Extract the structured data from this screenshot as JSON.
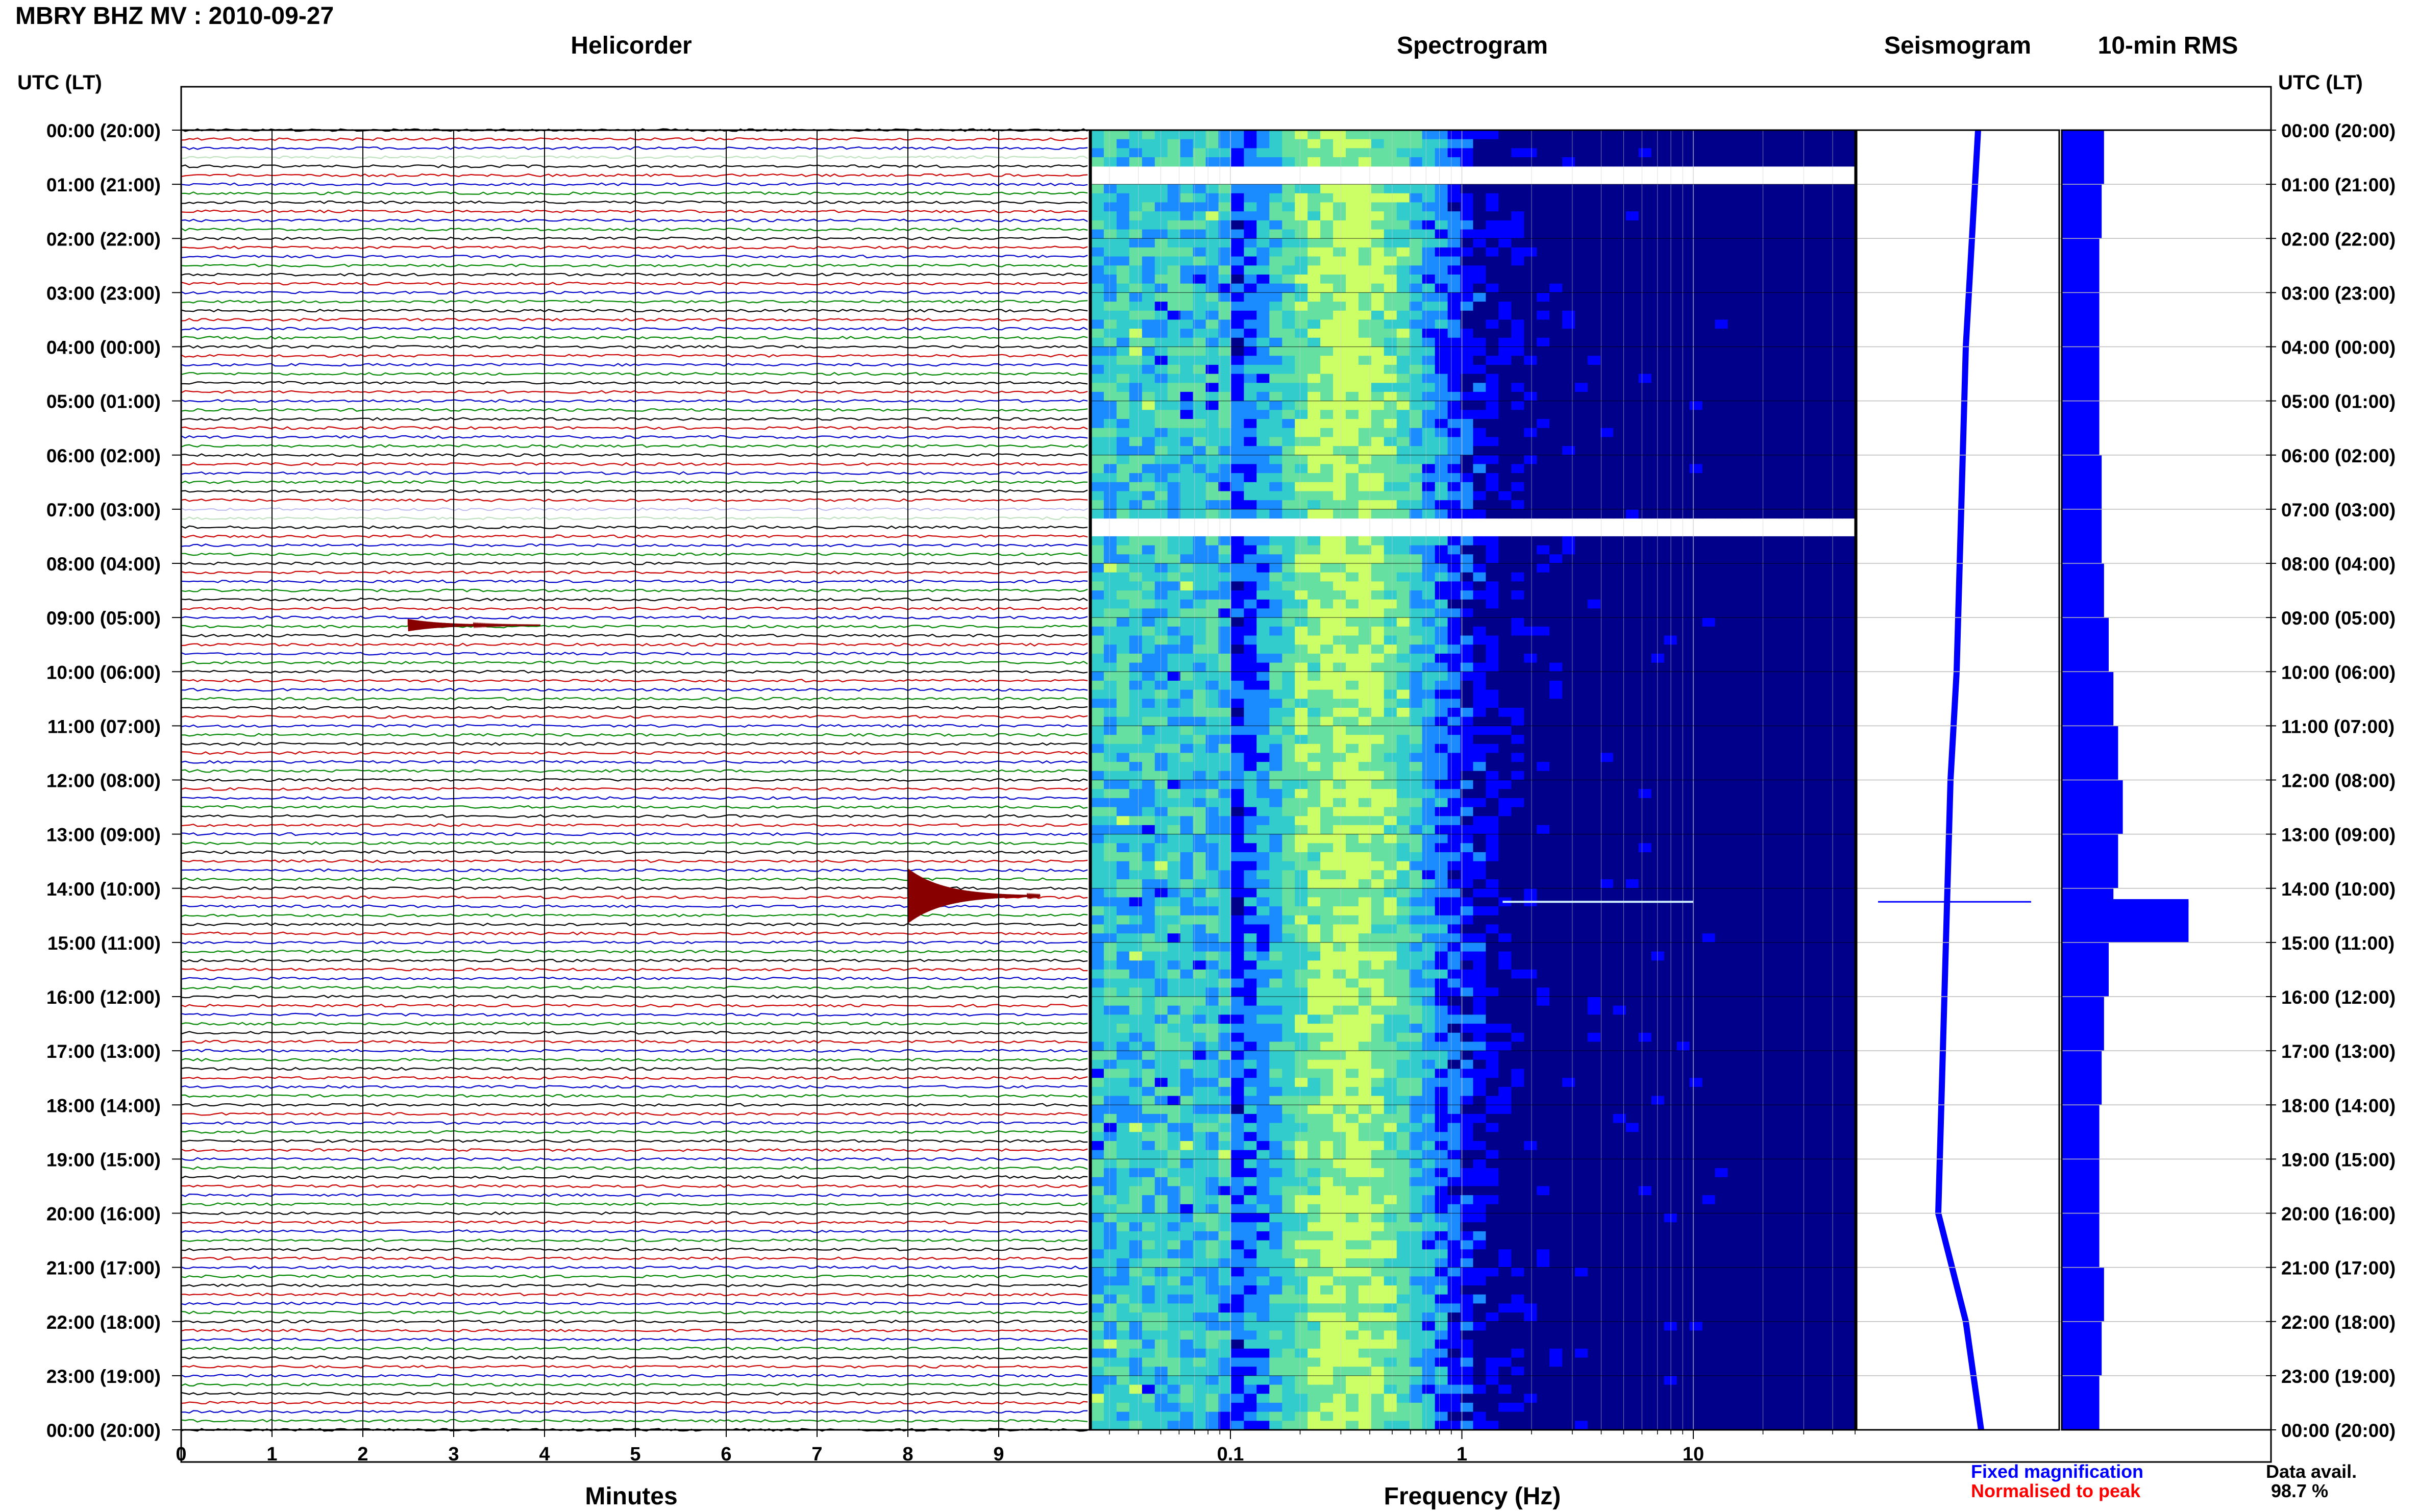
{
  "title": "MBRY BHZ MV : 2010-09-27",
  "panels": {
    "helicorder": "Helicorder",
    "spectrogram": "Spectrogram",
    "seismogram": "Seismogram",
    "rms": "10-min RMS"
  },
  "utc_header_left": "UTC (LT)",
  "utc_header_right": "UTC (LT)",
  "time_labels": [
    "00:00 (20:00)",
    "01:00 (21:00)",
    "02:00 (22:00)",
    "03:00 (23:00)",
    "04:00 (00:00)",
    "05:00 (01:00)",
    "06:00 (02:00)",
    "07:00 (03:00)",
    "08:00 (04:00)",
    "09:00 (05:00)",
    "10:00 (06:00)",
    "11:00 (07:00)",
    "12:00 (08:00)",
    "13:00 (09:00)",
    "14:00 (10:00)",
    "15:00 (11:00)",
    "16:00 (12:00)",
    "17:00 (13:00)",
    "18:00 (14:00)",
    "19:00 (15:00)",
    "20:00 (16:00)",
    "21:00 (17:00)",
    "22:00 (18:00)",
    "23:00 (19:00)",
    "00:00 (20:00)"
  ],
  "minutes_ticks": [
    "0",
    "1",
    "2",
    "3",
    "4",
    "5",
    "6",
    "7",
    "8",
    "9"
  ],
  "freq_ticks": [
    "0.1",
    "1",
    "10"
  ],
  "xlabel_helicorder": "Minutes",
  "xlabel_spectrogram": "Frequency (Hz)",
  "legend": {
    "fixed": "Fixed magnification",
    "normalised": "Normalised to peak",
    "fixed_color": "#0000ff",
    "normalised_color": "#ff0000"
  },
  "data_availability": {
    "label": "Data avail.",
    "value": "98.7 %"
  },
  "trace_colors": [
    "#000000",
    "#cc0000",
    "#0000cc",
    "#008800"
  ],
  "event_color": "#880000",
  "chart_data": [
    {
      "type": "line",
      "name": "helicorder",
      "x_range": [
        0,
        10
      ],
      "rows_per_hour": 6,
      "hours": 24,
      "gaps": [
        {
          "utc_hour": 0.5,
          "note": "partial data"
        },
        {
          "utc_hour": 7.1,
          "note": "partial data"
        }
      ],
      "events": [
        {
          "utc_hour": 14.0,
          "minute": 8.0,
          "relative_amplitude": 9
        },
        {
          "utc_hour": 9.0,
          "minute": 2.5,
          "relative_amplitude": 2
        }
      ]
    },
    {
      "type": "heatmap",
      "name": "spectrogram",
      "x_scale": "log",
      "x_range": [
        0.025,
        50
      ],
      "y_range_hours": [
        0,
        24
      ],
      "colormap": [
        "#00008b",
        "#0000ff",
        "#1a8cff",
        "#33cccc",
        "#66e0a0",
        "#ccff66"
      ],
      "peak_band_hz": [
        0.2,
        0.5
      ],
      "gaps_hours": [
        [
          0.55,
          1.0
        ],
        [
          7.15,
          7.35
        ]
      ]
    },
    {
      "type": "line",
      "name": "seismogram",
      "color": "#0000ff",
      "y_hours": [
        0,
        2,
        4,
        6,
        8,
        10,
        12,
        14,
        16,
        18,
        20,
        22,
        24
      ],
      "offset": [
        0.3,
        0.2,
        0.1,
        0.05,
        0.0,
        -0.05,
        -0.15,
        -0.2,
        -0.25,
        -0.3,
        -0.35,
        0.1,
        0.35
      ],
      "spike_utc_hour": 14.25
    },
    {
      "type": "bar",
      "name": "10-min RMS",
      "color": "#0000ff",
      "orientation": "horizontal",
      "y_hours": [
        0,
        1,
        2,
        3,
        4,
        5,
        6,
        7,
        8,
        9,
        10,
        11,
        12,
        13,
        14,
        14.25,
        15,
        16,
        17,
        18,
        19,
        20,
        21,
        22,
        23,
        24
      ],
      "values": [
        0.9,
        0.85,
        0.8,
        0.8,
        0.8,
        0.8,
        0.85,
        0.85,
        0.9,
        1.0,
        1.1,
        1.2,
        1.3,
        1.2,
        1.1,
        2.7,
        1.0,
        0.9,
        0.85,
        0.8,
        0.8,
        0.8,
        0.9,
        0.85,
        0.8,
        0.8
      ]
    }
  ]
}
